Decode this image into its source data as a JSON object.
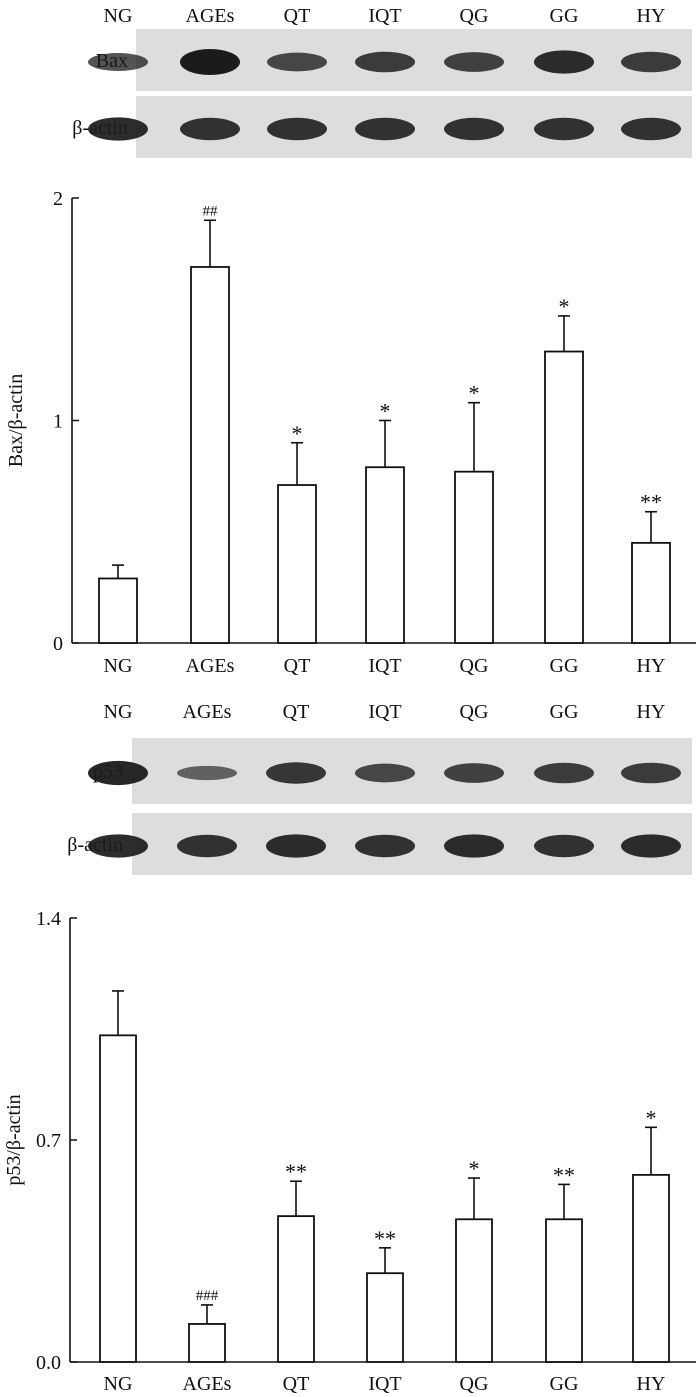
{
  "chart_data": [
    {
      "type": "bar",
      "blot": {
        "lanes": [
          "NG",
          "AGEs",
          "QT",
          "IQT",
          "QG",
          "GG",
          "HY"
        ],
        "rows": [
          {
            "label": "Bax",
            "intensity": [
              0.55,
              1.0,
              0.6,
              0.7,
              0.65,
              0.85,
              0.7
            ]
          },
          {
            "label": "β-actin",
            "intensity": [
              0.85,
              0.8,
              0.8,
              0.8,
              0.8,
              0.8,
              0.8
            ]
          }
        ]
      },
      "categories": [
        "NG",
        "AGEs",
        "QT",
        "IQT",
        "QG",
        "GG",
        "HY"
      ],
      "values": [
        0.29,
        1.69,
        0.71,
        0.79,
        0.77,
        1.31,
        0.45
      ],
      "errors": [
        0.06,
        0.21,
        0.19,
        0.21,
        0.31,
        0.16,
        0.14
      ],
      "annotations": [
        "",
        "##",
        "*",
        "*",
        "*",
        "*",
        "**"
      ],
      "ylabel": "Bax/β-actin",
      "ylim": [
        0,
        2
      ],
      "yticks": [
        "0",
        "1",
        "2"
      ],
      "grid": false
    },
    {
      "type": "bar",
      "blot": {
        "lanes": [
          "NG",
          "AGEs",
          "QT",
          "IQT",
          "QG",
          "GG",
          "HY"
        ],
        "rows": [
          {
            "label": "p53",
            "intensity": [
              0.9,
              0.35,
              0.75,
              0.6,
              0.65,
              0.7,
              0.7
            ]
          },
          {
            "label": "β-actin",
            "intensity": [
              0.85,
              0.8,
              0.85,
              0.8,
              0.85,
              0.8,
              0.85
            ]
          }
        ]
      },
      "categories": [
        "NG",
        "AGEs",
        "QT",
        "IQT",
        "QG",
        "GG",
        "HY"
      ],
      "values": [
        1.03,
        0.12,
        0.46,
        0.28,
        0.45,
        0.45,
        0.59
      ],
      "errors": [
        0.14,
        0.06,
        0.11,
        0.08,
        0.13,
        0.11,
        0.15
      ],
      "annotations": [
        "",
        "###",
        "**",
        "**",
        "*",
        "**",
        "*"
      ],
      "ylabel": "p53/β-actin",
      "ylim": [
        0,
        1.4
      ],
      "yticks": [
        "0.0",
        "0.7",
        "1.4"
      ],
      "grid": false
    }
  ]
}
